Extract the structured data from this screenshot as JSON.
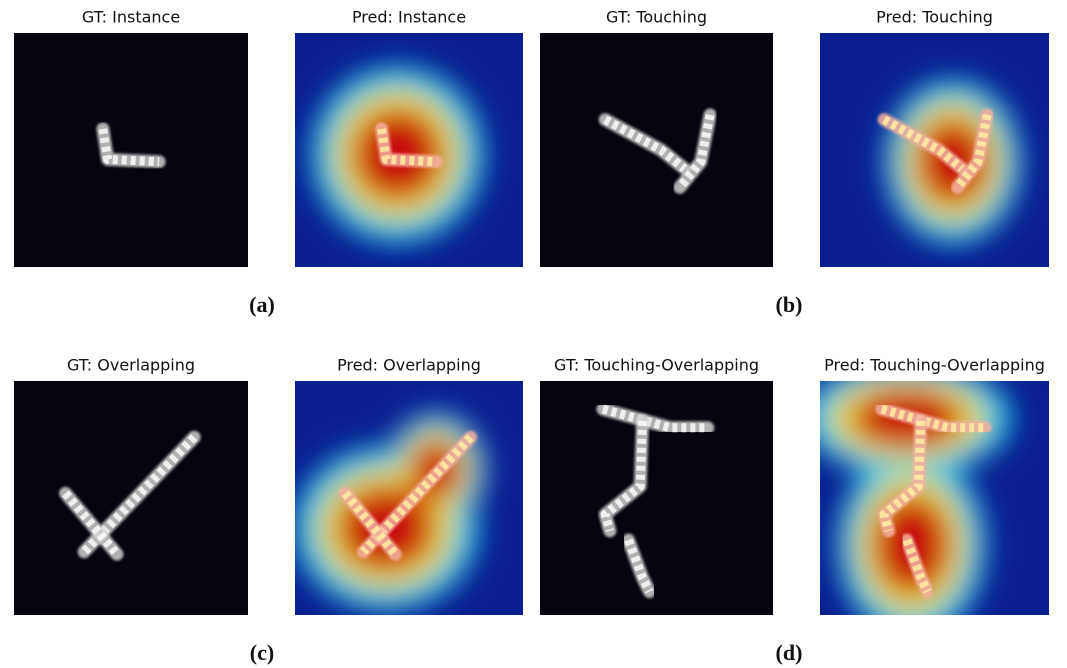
{
  "rows": [
    {
      "panels": [
        {
          "title": "GT: Instance"
        },
        {
          "title": "Pred: Instance"
        },
        {
          "title": "GT: Touching"
        },
        {
          "title": "Pred: Touching"
        }
      ],
      "labels": [
        "(a)",
        "(b)"
      ]
    },
    {
      "panels": [
        {
          "title": "GT: Overlapping"
        },
        {
          "title": "Pred: Overlapping"
        },
        {
          "title": "GT: Touching-Overlapping"
        },
        {
          "title": "Pred: Touching-Overlapping"
        }
      ],
      "labels": [
        "(c)",
        "(d)"
      ]
    }
  ]
}
